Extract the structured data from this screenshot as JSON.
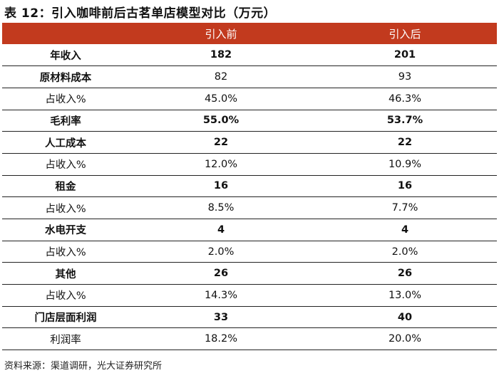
{
  "title": "表 12：引入咖啡前后古茗单店模型对比（万元）",
  "columns": [
    "",
    "引入前",
    "引入后"
  ],
  "rows": [
    {
      "label": "年收入",
      "before": "182",
      "after": "201",
      "bold": true
    },
    {
      "label": "原材料成本",
      "before": "82",
      "after": "93",
      "bold": false,
      "label_bold": true
    },
    {
      "label": "占收入%",
      "before": "45.0%",
      "after": "46.3%",
      "bold": false
    },
    {
      "label": "毛利率",
      "before": "55.0%",
      "after": "53.7%",
      "bold": true
    },
    {
      "label": "人工成本",
      "before": "22",
      "after": "22",
      "bold": true
    },
    {
      "label": "占收入%",
      "before": "12.0%",
      "after": "10.9%",
      "bold": false
    },
    {
      "label": "租金",
      "before": "16",
      "after": "16",
      "bold": true
    },
    {
      "label": "占收入%",
      "before": "8.5%",
      "after": "7.7%",
      "bold": false
    },
    {
      "label": "水电开支",
      "before": "4",
      "after": "4",
      "bold": true
    },
    {
      "label": "占收入%",
      "before": "2.0%",
      "after": "2.0%",
      "bold": false
    },
    {
      "label": "其他",
      "before": "26",
      "after": "26",
      "bold": true
    },
    {
      "label": "占收入%",
      "before": "14.3%",
      "after": "13.0%",
      "bold": false
    },
    {
      "label": "门店层面利润",
      "before": "33",
      "after": "40",
      "bold": true
    },
    {
      "label": "利润率",
      "before": "18.2%",
      "after": "20.0%",
      "bold": false
    }
  ],
  "source": "资料来源：渠道调研，光大证券研究所",
  "colors": {
    "header_bg": "#c23a1e",
    "header_text": "#ffffff",
    "rule": "#222222"
  }
}
